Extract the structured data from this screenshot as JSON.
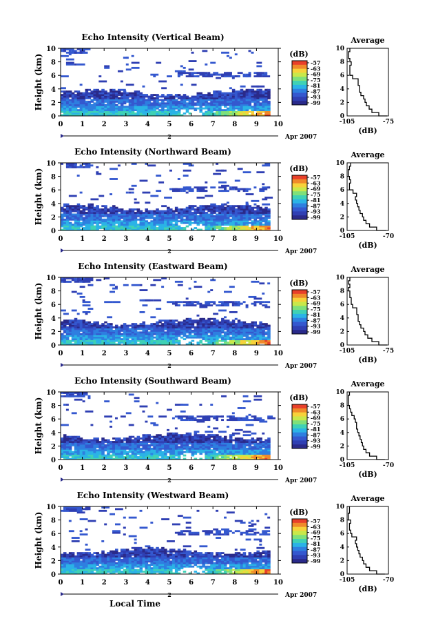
{
  "footer": {
    "x_label": "Local Time"
  },
  "legend_unit": "(dB)",
  "colorbar_ticks": [
    "-57",
    "-63",
    "-69",
    "-75",
    "-81",
    "-87",
    "-93",
    "-99"
  ],
  "colorbar_colors": [
    "#e8402a",
    "#f08a2a",
    "#f7d23a",
    "#c9e84a",
    "#7fe07a",
    "#3fd1b5",
    "#2bb3e6",
    "#2e7fe0",
    "#3458cf",
    "#2f3fb3",
    "#2a2a8a"
  ],
  "chart_data": [
    {
      "type": "heatmap",
      "title": "Echo Intensity (Vertical Beam)",
      "ylabel": "Height (km)",
      "x_ticks": [
        "0",
        "1",
        "2",
        "3",
        "4",
        "5",
        "6",
        "7",
        "8",
        "9",
        "10"
      ],
      "y_ticks": [
        "0",
        "2",
        "4",
        "6",
        "8",
        "10"
      ],
      "xlim": [
        0,
        10
      ],
      "ylim": [
        0,
        10
      ],
      "date_marker": "2",
      "date_label": "Apr 2007",
      "zrange_db": [
        -99,
        -57
      ],
      "average_profile": {
        "title": "Average",
        "xlabel": "(dB)",
        "x_ticks": [
          "-105",
          "-75"
        ],
        "xlim": [
          -105,
          -75
        ],
        "ylim": [
          0,
          10
        ],
        "height_km": [
          0,
          0.5,
          1,
          1.5,
          2,
          2.5,
          3,
          3.5,
          4,
          4.5,
          5,
          5.5,
          6,
          6.5,
          7,
          7.5,
          8,
          8.5,
          9,
          9.5,
          10
        ],
        "value_db": [
          -76,
          -82,
          -87,
          -89,
          -91,
          -92,
          -93,
          -95,
          -96,
          -96,
          -97,
          -97,
          -101,
          -103,
          -103,
          -103,
          -102,
          -103,
          -104,
          -104,
          -103
        ]
      }
    },
    {
      "type": "heatmap",
      "title": "Echo Intensity (Northward Beam)",
      "ylabel": "Height (km)",
      "x_ticks": [
        "0",
        "1",
        "2",
        "3",
        "4",
        "5",
        "6",
        "7",
        "8",
        "9",
        "10"
      ],
      "y_ticks": [
        "0",
        "2",
        "4",
        "6",
        "8",
        "10"
      ],
      "xlim": [
        0,
        10
      ],
      "ylim": [
        0,
        10
      ],
      "date_marker": "2",
      "date_label": "Apr 2007",
      "zrange_db": [
        -99,
        -57
      ],
      "average_profile": {
        "title": "Average",
        "xlabel": "(dB)",
        "x_ticks": [
          "-105",
          "-70"
        ],
        "xlim": [
          -105,
          -70
        ],
        "ylim": [
          0,
          10
        ],
        "height_km": [
          0,
          0.5,
          1,
          1.5,
          2,
          2.5,
          3,
          3.5,
          4,
          4.5,
          5,
          5.5,
          6,
          6.5,
          7,
          7.5,
          8,
          8.5,
          9,
          9.5,
          10
        ],
        "value_db": [
          -72,
          -80,
          -86,
          -89,
          -91,
          -92,
          -94,
          -95,
          -96,
          -97,
          -98,
          -97,
          -100,
          -103,
          -103,
          -102,
          -103,
          -104,
          -104,
          -103,
          -102
        ]
      }
    },
    {
      "type": "heatmap",
      "title": "Echo Intensity (Eastward Beam)",
      "ylabel": "Height (km)",
      "x_ticks": [
        "0",
        "1",
        "2",
        "3",
        "4",
        "5",
        "6",
        "7",
        "8",
        "9",
        "10"
      ],
      "y_ticks": [
        "0",
        "2",
        "4",
        "6",
        "8",
        "10"
      ],
      "xlim": [
        0,
        10
      ],
      "ylim": [
        0,
        10
      ],
      "date_marker": "2",
      "date_label": "Apr 2007",
      "zrange_db": [
        -99,
        -57
      ],
      "average_profile": {
        "title": "Average",
        "xlabel": "(dB)",
        "x_ticks": [
          "-105",
          "-75"
        ],
        "xlim": [
          -105,
          -75
        ],
        "ylim": [
          0,
          10
        ],
        "height_km": [
          0,
          0.5,
          1,
          1.5,
          2,
          2.5,
          3,
          3.5,
          4,
          4.5,
          5,
          5.5,
          6,
          6.5,
          7,
          7.5,
          8,
          8.5,
          9,
          9.5,
          10
        ],
        "value_db": [
          -76,
          -82,
          -87,
          -90,
          -92,
          -93,
          -95,
          -96,
          -97,
          -97,
          -98,
          -98,
          -101,
          -102,
          -102,
          -103,
          -103,
          -104,
          -103,
          -104,
          -103
        ]
      }
    },
    {
      "type": "heatmap",
      "title": "Echo Intensity (Southward Beam)",
      "ylabel": "Height (km)",
      "x_ticks": [
        "0",
        "1",
        "2",
        "3",
        "4",
        "5",
        "6",
        "7",
        "8",
        "9",
        "10"
      ],
      "y_ticks": [
        "0",
        "2",
        "4",
        "6",
        "8",
        "10"
      ],
      "xlim": [
        0,
        10
      ],
      "ylim": [
        0,
        10
      ],
      "date_marker": "2",
      "date_label": "Apr 2007",
      "zrange_db": [
        -99,
        -57
      ],
      "average_profile": {
        "title": "Average",
        "xlabel": "(dB)",
        "x_ticks": [
          "-105",
          "-70"
        ],
        "xlim": [
          -105,
          -70
        ],
        "ylim": [
          0,
          10
        ],
        "height_km": [
          0,
          0.5,
          1,
          1.5,
          2,
          2.5,
          3,
          3.5,
          4,
          4.5,
          5,
          5.5,
          6,
          6.5,
          7,
          7.5,
          8,
          8.5,
          9,
          9.5,
          10
        ],
        "value_db": [
          -73,
          -80,
          -86,
          -89,
          -91,
          -92,
          -93,
          -94,
          -95,
          -96,
          -97,
          -97,
          -98,
          -99,
          -101,
          -102,
          -103,
          -104,
          -104,
          -104,
          -103
        ]
      }
    },
    {
      "type": "heatmap",
      "title": "Echo Intensity (Westward Beam)",
      "ylabel": "Height (km)",
      "x_ticks": [
        "0",
        "1",
        "2",
        "3",
        "4",
        "5",
        "6",
        "7",
        "8",
        "9",
        "10"
      ],
      "y_ticks": [
        "0",
        "2",
        "4",
        "6",
        "8",
        "10"
      ],
      "xlim": [
        0,
        10
      ],
      "ylim": [
        0,
        10
      ],
      "date_marker": "2",
      "date_label": "Apr 2007",
      "zrange_db": [
        -99,
        -57
      ],
      "average_profile": {
        "title": "Average",
        "xlabel": "(dB)",
        "x_ticks": [
          "-105",
          "-70"
        ],
        "xlim": [
          -105,
          -70
        ],
        "ylim": [
          0,
          10
        ],
        "height_km": [
          0,
          0.5,
          1,
          1.5,
          2,
          2.5,
          3,
          3.5,
          4,
          4.5,
          5,
          5.5,
          6,
          6.5,
          7,
          7.5,
          8,
          8.5,
          9,
          9.5,
          10
        ],
        "value_db": [
          -73,
          -80,
          -86,
          -89,
          -91,
          -92,
          -94,
          -95,
          -96,
          -97,
          -98,
          -97,
          -101,
          -102,
          -103,
          -103,
          -102,
          -104,
          -104,
          -103,
          -103
        ]
      }
    }
  ]
}
